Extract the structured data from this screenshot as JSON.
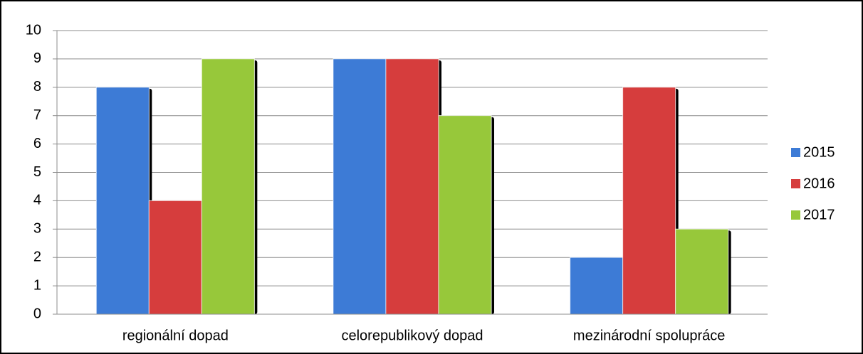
{
  "chart_data": {
    "type": "bar",
    "categories": [
      "regionální dopad",
      "celorepublikový dopad",
      "mezinárodní spolupráce"
    ],
    "series": [
      {
        "name": "2015",
        "color": "#3d7bd6",
        "values": [
          8,
          9,
          2
        ]
      },
      {
        "name": "2016",
        "color": "#d63d3d",
        "values": [
          4,
          9,
          8
        ]
      },
      {
        "name": "2017",
        "color": "#97c83a",
        "values": [
          9,
          7,
          3
        ]
      }
    ],
    "ylim": [
      0,
      10
    ],
    "yticks": [
      0,
      1,
      2,
      3,
      4,
      5,
      6,
      7,
      8,
      9,
      10
    ],
    "grid": true,
    "legend": "right"
  }
}
